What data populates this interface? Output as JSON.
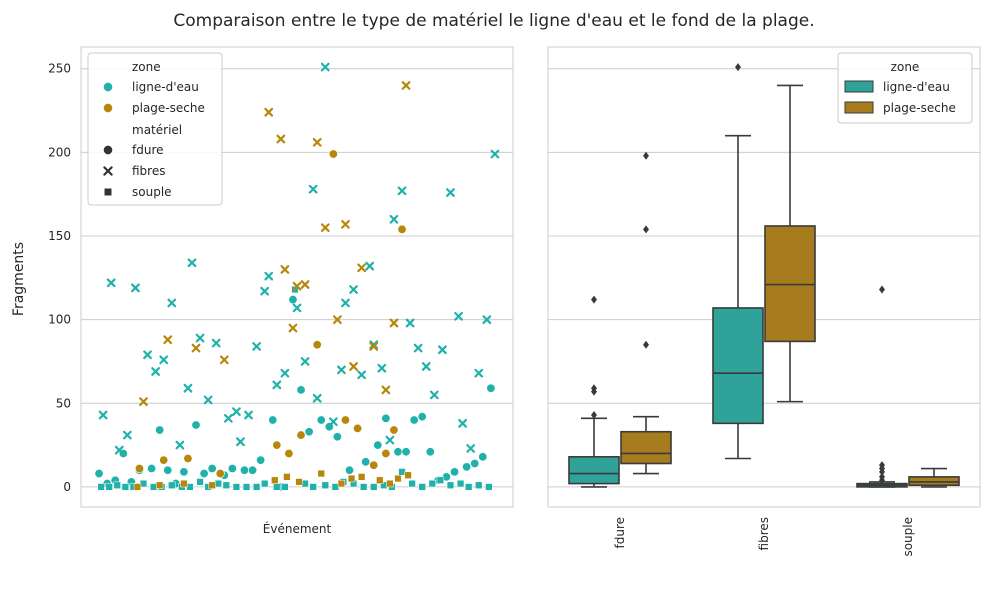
{
  "title": "Comparaison entre le type de matériel le ligne d'eau et le fond de la plage.",
  "ylabel": "Fragments",
  "colors": {
    "ligne_d_eau": "#20b2aa",
    "plage_seche": "#b8860b",
    "box_ligne_d_eau": "#2fa39a",
    "box_plage_seche": "#a67c1e",
    "grid": "#cccccc",
    "panel_bg": "#ffffff",
    "axis_text": "#262626",
    "box_line": "#3a3a3a"
  },
  "chart_data": [
    {
      "type": "scatter",
      "xlabel": "Événement",
      "ylim": [
        -12,
        263
      ],
      "yticks": [
        0,
        50,
        100,
        150,
        200,
        250
      ],
      "legend": {
        "placement": "top-left",
        "hue_title": "zone",
        "hue_entries": [
          "ligne-d'eau",
          "plage-seche"
        ],
        "style_title": "matériel",
        "style_entries": [
          "fdure",
          "fibres",
          "souple"
        ]
      },
      "series": [
        {
          "zone": "ligne-d'eau",
          "material": "fdure",
          "marker": "circle",
          "x": [
            2,
            4,
            6,
            8,
            10,
            12,
            15,
            17,
            19,
            21,
            23,
            26,
            28,
            30,
            33,
            35,
            38,
            40,
            42,
            45,
            47,
            50,
            52,
            54,
            57,
            59,
            61,
            64,
            66,
            68,
            71,
            73,
            76,
            78,
            80,
            82,
            84,
            86,
            88,
            90,
            93,
            95,
            97,
            99
          ],
          "y": [
            8,
            2,
            4,
            20,
            3,
            10,
            11,
            34,
            10,
            2,
            9,
            37,
            8,
            11,
            7,
            11,
            10,
            10,
            16,
            40,
            0,
            112,
            58,
            33,
            40,
            36,
            30,
            10,
            35,
            15,
            25,
            41,
            21,
            21,
            40,
            42,
            21,
            4,
            6,
            9,
            12,
            14,
            18,
            59
          ]
        },
        {
          "zone": "ligne-d'eau",
          "material": "fibres",
          "marker": "x",
          "x": [
            3,
            5,
            7,
            9,
            11,
            14,
            16,
            18,
            20,
            22,
            24,
            25,
            27,
            29,
            31,
            34,
            36,
            37,
            39,
            41,
            43,
            44,
            46,
            48,
            51,
            53,
            55,
            56,
            58,
            60,
            62,
            63,
            65,
            67,
            69,
            70,
            72,
            74,
            75,
            77,
            79,
            81,
            83,
            85,
            87,
            89,
            91,
            92,
            94,
            96,
            98,
            100
          ],
          "y": [
            43,
            122,
            22,
            31,
            119,
            79,
            69,
            76,
            110,
            25,
            59,
            134,
            89,
            52,
            86,
            41,
            45,
            27,
            43,
            84,
            117,
            126,
            61,
            68,
            107,
            75,
            178,
            53,
            251,
            39,
            70,
            110,
            118,
            67,
            132,
            85,
            71,
            28,
            160,
            177,
            98,
            83,
            72,
            55,
            82,
            176,
            102,
            38,
            23,
            68,
            100,
            199
          ]
        },
        {
          "zone": "ligne-d'eau",
          "material": "souple",
          "marker": "square",
          "x": [
            2.5,
            4.5,
            6.5,
            8.5,
            10.5,
            13,
            15.5,
            17.5,
            20,
            22.5,
            24.5,
            27,
            29,
            31.5,
            33.5,
            36,
            38.5,
            41,
            43,
            46,
            48,
            50.5,
            53,
            55,
            58,
            60.5,
            62.5,
            65,
            67.5,
            70,
            72.5,
            74.5,
            77,
            79.5,
            82,
            84.5,
            86.5,
            89,
            91.5,
            93.5,
            96,
            98.5
          ],
          "y": [
            0,
            0,
            1,
            0,
            0,
            2,
            0,
            0,
            1,
            0,
            0,
            3,
            0,
            2,
            1,
            0,
            0,
            0,
            2,
            0,
            0,
            118,
            2,
            0,
            1,
            0,
            3,
            2,
            0,
            0,
            1,
            0,
            9,
            2,
            0,
            2,
            4,
            1,
            2,
            0,
            1,
            0
          ]
        },
        {
          "zone": "plage-seche",
          "material": "fdure",
          "marker": "circle",
          "x": [
            12,
            18,
            24,
            32,
            46,
            49,
            52,
            56,
            60,
            63,
            66,
            70,
            73,
            75,
            77
          ],
          "y": [
            11,
            16,
            17,
            8,
            25,
            20,
            31,
            85,
            199,
            40,
            35,
            13,
            20,
            34,
            154
          ]
        },
        {
          "zone": "plage-seche",
          "material": "fibres",
          "marker": "x",
          "x": [
            13,
            19,
            26,
            33,
            44,
            47,
            48,
            50,
            51,
            53,
            56,
            58,
            61,
            63,
            65,
            67,
            70,
            73,
            75,
            78
          ],
          "y": [
            51,
            88,
            83,
            76,
            224,
            208,
            130,
            95,
            120,
            121,
            206,
            155,
            100,
            157,
            72,
            131,
            84,
            58,
            98,
            240
          ]
        },
        {
          "zone": "plage-seche",
          "material": "souple",
          "marker": "square",
          "x": [
            11.5,
            17,
            23,
            30,
            45.5,
            48.5,
            51.5,
            57,
            62,
            64.5,
            67,
            71.5,
            74,
            76,
            78.5
          ],
          "y": [
            0,
            1,
            2,
            1,
            4,
            6,
            3,
            8,
            2,
            5,
            6,
            4,
            2,
            5,
            7
          ]
        }
      ]
    },
    {
      "type": "box",
      "categories": [
        "fdure",
        "fibres",
        "souple"
      ],
      "ylim": [
        -12,
        263
      ],
      "legend": {
        "placement": "top-right",
        "title": "zone",
        "entries": [
          "ligne-d'eau",
          "plage-seche"
        ]
      },
      "series": [
        {
          "name": "ligne-d'eau",
          "boxes": [
            {
              "whisker_low": 0,
              "q1": 2,
              "median": 8,
              "q3": 18,
              "whisker_high": 41,
              "outliers": [
                43,
                57,
                59,
                112
              ]
            },
            {
              "whisker_low": 17,
              "q1": 38,
              "median": 68,
              "q3": 107,
              "whisker_high": 210,
              "outliers": [
                251
              ]
            },
            {
              "whisker_low": 0,
              "q1": 0,
              "median": 1,
              "q3": 2,
              "whisker_high": 3,
              "outliers": [
                4,
                6,
                9,
                11,
                13,
                118
              ]
            }
          ]
        },
        {
          "name": "plage-seche",
          "boxes": [
            {
              "whisker_low": 8,
              "q1": 14,
              "median": 20,
              "q3": 33,
              "whisker_high": 42,
              "outliers": [
                85,
                154,
                198
              ]
            },
            {
              "whisker_low": 51,
              "q1": 87,
              "median": 121,
              "q3": 156,
              "whisker_high": 240,
              "outliers": []
            },
            {
              "whisker_low": 0,
              "q1": 1,
              "median": 3,
              "q3": 6,
              "whisker_high": 11,
              "outliers": []
            }
          ]
        }
      ]
    }
  ]
}
